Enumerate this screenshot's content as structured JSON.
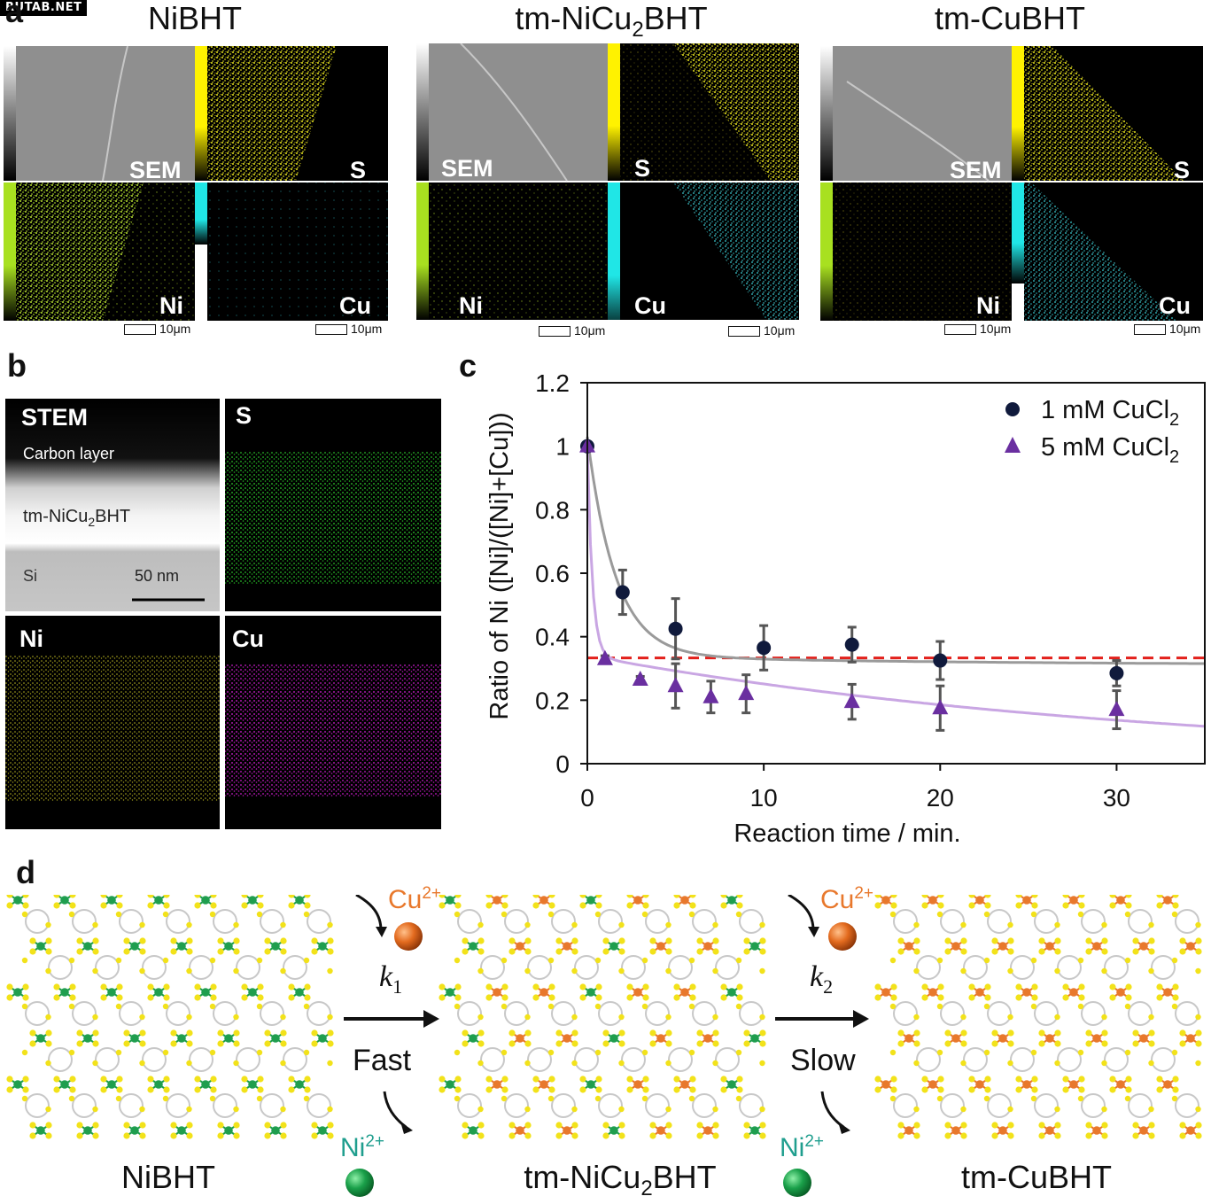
{
  "watermark": "RUTAB.NET",
  "panel_a": {
    "letter": "a",
    "groups": [
      {
        "title_main": "NiBHT",
        "title_sub": "",
        "title_tail": "",
        "labels": [
          "SEM",
          "S",
          "Ni",
          "Cu"
        ],
        "scale": "10μm"
      },
      {
        "title_main": "tm-NiCu",
        "title_sub": "2",
        "title_tail": "BHT",
        "labels": [
          "SEM",
          "S",
          "Ni",
          "Cu"
        ],
        "scale": "10μm"
      },
      {
        "title_main": "tm-CuBHT",
        "title_sub": "",
        "title_tail": "",
        "labels": [
          "SEM",
          "S",
          "Ni",
          "Cu"
        ],
        "scale": "10μm"
      }
    ]
  },
  "panel_b": {
    "letter": "b",
    "stem_title": "STEM",
    "carbon_layer": "Carbon layer",
    "film_main": "tm-NiCu",
    "film_sub": "2",
    "film_tail": "BHT",
    "substrate": "Si",
    "scale": "50 nm",
    "labels": [
      "S",
      "Ni",
      "Cu"
    ]
  },
  "panel_c": {
    "letter": "c",
    "chart_data": {
      "type": "scatter",
      "xlabel": "Reaction time / min.",
      "ylabel": "Ratio of Ni  ([Ni]/([Ni]+[Cu]))",
      "xlim": [
        0,
        35
      ],
      "ylim": [
        0,
        1.2
      ],
      "xticks": [
        0,
        10,
        20,
        30
      ],
      "yticks": [
        0,
        0.2,
        0.4,
        0.6,
        0.8,
        1,
        1.2
      ],
      "reference_line": 0.333,
      "legend_position": "top-right",
      "series": [
        {
          "name_main": "1 mM CuCl",
          "name_sub": "2",
          "marker": "circle",
          "color": "#101a3c",
          "x": [
            0,
            2,
            5,
            10,
            15,
            20,
            30
          ],
          "y": [
            1.0,
            0.54,
            0.425,
            0.365,
            0.375,
            0.325,
            0.285
          ],
          "err": [
            0,
            0.07,
            0.095,
            0.07,
            0.055,
            0.06,
            0.04
          ],
          "fit_color": "#9a9a9a"
        },
        {
          "name_main": "5 mM CuCl",
          "name_sub": "2",
          "marker": "triangle",
          "color": "#6a2fa0",
          "x": [
            0,
            1,
            3,
            5,
            7,
            9,
            15,
            20,
            30
          ],
          "y": [
            1.0,
            0.33,
            0.265,
            0.245,
            0.21,
            0.22,
            0.195,
            0.175,
            0.17
          ],
          "err": [
            0,
            0.01,
            0.01,
            0.07,
            0.05,
            0.06,
            0.055,
            0.07,
            0.06
          ],
          "fit_color": "#c9a6e3"
        }
      ]
    }
  },
  "panel_d": {
    "letter": "d",
    "ion_in": "Cu",
    "ion_in_sup": "2+",
    "ion_out": "Ni",
    "ion_out_sup": "2+",
    "k_symbol": "k",
    "k1_sub": "1",
    "k2_sub": "2",
    "fast": "Fast",
    "slow": "Slow",
    "names": [
      {
        "main": "NiBHT",
        "sub": "",
        "tail": ""
      },
      {
        "main": "tm-NiCu",
        "sub": "2",
        "tail": "BHT"
      },
      {
        "main": "tm-CuBHT",
        "sub": "",
        "tail": ""
      }
    ],
    "colors": {
      "ni": "#1f9e4e",
      "cu": "#e8782c",
      "s": "#f2e21a",
      "c": "#c8c8c8"
    }
  }
}
